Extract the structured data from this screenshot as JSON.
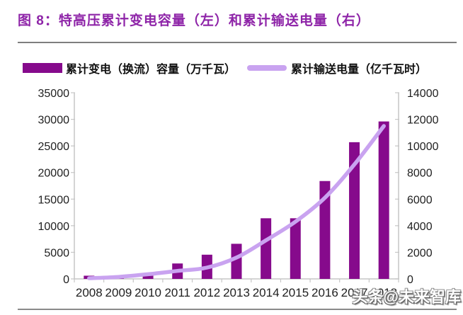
{
  "figure": {
    "title": "图 8：特高压累计变电容量（左）和累计输送电量（右）",
    "title_color": "#8e24a8",
    "divider_color": "#7f7f7f",
    "watermark": "头条@未来智库"
  },
  "legend": {
    "bar_label": "累计变电（换流）容量（万千瓦）",
    "line_label": "累计输送电量（亿千瓦时）"
  },
  "chart_data": {
    "type": "bar",
    "title": "特高压累计变电容量（左）和累计输送电量（右）",
    "categories": [
      "2008",
      "2009",
      "2010",
      "2011",
      "2012",
      "2013",
      "2014",
      "2015",
      "2016",
      "2017",
      "2018"
    ],
    "series": [
      {
        "name": "累计变电（换流）容量（万千瓦）",
        "chart_type": "bar",
        "y_axis": "left",
        "color": "#860A8C",
        "values": [
          600,
          600,
          900,
          2900,
          4550,
          6600,
          11400,
          11400,
          18400,
          25700,
          29600
        ]
      },
      {
        "name": "累计输送电量（亿千瓦时）",
        "chart_type": "line",
        "y_axis": "right",
        "color": "#C9A3F0",
        "values": [
          50,
          150,
          350,
          600,
          850,
          1600,
          2900,
          4300,
          6100,
          8600,
          11500
        ]
      }
    ],
    "left_axis": {
      "min": 0,
      "max": 35000,
      "step": 5000,
      "tick_labels": [
        "0",
        "5000",
        "10000",
        "15000",
        "20000",
        "25000",
        "30000",
        "35000"
      ]
    },
    "right_axis": {
      "min": 0,
      "max": 14000,
      "step": 2000,
      "tick_labels": [
        "0",
        "2000",
        "4000",
        "6000",
        "8000",
        "10000",
        "12000",
        "14000"
      ]
    },
    "grid": false,
    "legend_position": "top",
    "axis_text_color": "#1f1f1f",
    "axis_line_color": "#c6c6c6"
  }
}
